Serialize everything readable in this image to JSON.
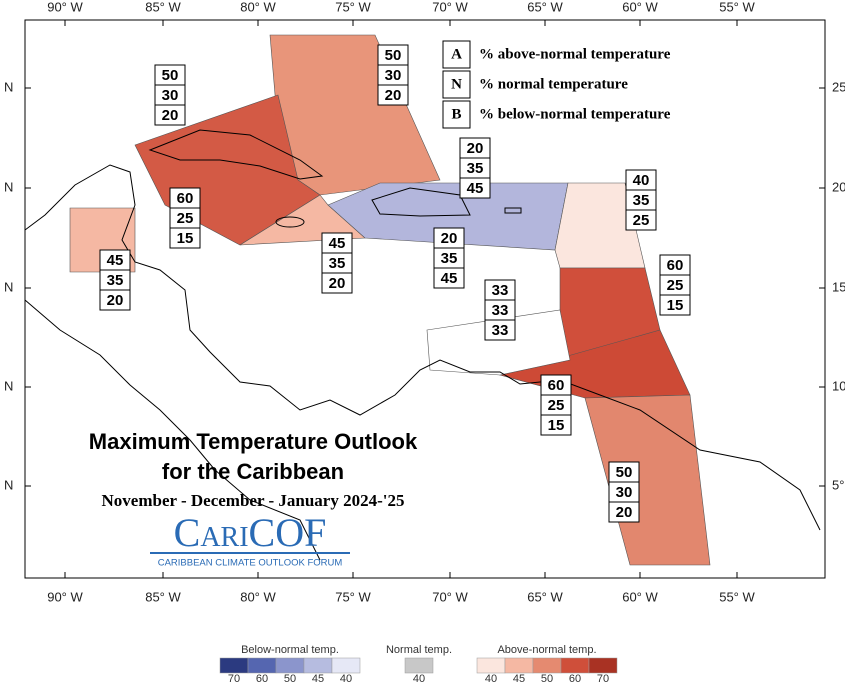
{
  "title": "Maximum Temperature Outlook",
  "subtitle": "for the Caribbean",
  "period": "November - December - January 2024-'25",
  "logo": {
    "name": "CariCOF",
    "tagline": "CARIBBEAN CLIMATE OUTLOOK FORUM"
  },
  "axes": {
    "lon_labels": [
      "90° W",
      "85° W",
      "80° W",
      "75° W",
      "70° W",
      "65° W",
      "60° W",
      "55° W"
    ],
    "left_lat_labels": [
      "N",
      "N",
      "N",
      "N",
      "N"
    ],
    "right_lat_labels": [
      "25",
      "20",
      "15",
      "10",
      "5°"
    ]
  },
  "key": [
    {
      "letter": "A",
      "text": "% above-normal temperature"
    },
    {
      "letter": "N",
      "text": "% normal temperature"
    },
    {
      "letter": "B",
      "text": "% below-normal temperature"
    }
  ],
  "forecasts": [
    [
      50,
      30,
      20
    ],
    [
      50,
      30,
      20
    ],
    [
      20,
      35,
      45
    ],
    [
      40,
      35,
      25
    ],
    [
      60,
      25,
      15
    ],
    [
      45,
      35,
      20
    ],
    [
      20,
      35,
      45
    ],
    [
      45,
      35,
      20
    ],
    [
      60,
      25,
      15
    ],
    [
      33,
      33,
      33
    ],
    [
      60,
      25,
      15
    ],
    [
      50,
      30,
      20
    ]
  ],
  "colorbar": [
    {
      "label": "Below-normal temp.",
      "ticks": [
        70,
        60,
        50,
        45,
        40
      ],
      "colors": [
        "#2b3a80",
        "#5566b0",
        "#8b95cc",
        "#b6bce0",
        "#e6e8f6"
      ]
    },
    {
      "label": "Normal temp.",
      "ticks": [
        40
      ],
      "colors": [
        "#c8c8c8"
      ]
    },
    {
      "label": "Above-normal temp.",
      "ticks": [
        40,
        45,
        50,
        60,
        70
      ],
      "colors": [
        "#fbe6de",
        "#f5b8a3",
        "#e58a70",
        "#cf4f3a",
        "#a93223"
      ]
    }
  ]
}
